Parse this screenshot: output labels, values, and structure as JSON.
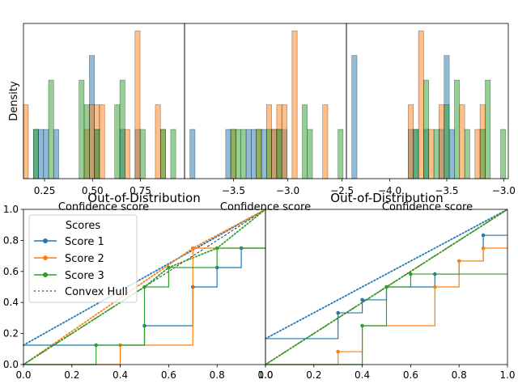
{
  "chart_data": [
    {
      "type": "bar",
      "panel": "hist-1",
      "ylabel": "Density",
      "xlabel": "Confidence score",
      "xlim": [
        0.14,
        0.98
      ],
      "xticks": [
        0.25,
        0.5,
        0.75
      ],
      "xtick_labels": [
        "0.25",
        "0.50",
        "0.75"
      ],
      "ylim": [
        0,
        6.3
      ],
      "bin_width": 0.0265,
      "series": [
        {
          "color": "#1f77b4",
          "bins": [
            [
              0.205,
              2
            ],
            [
              0.232,
              2
            ],
            [
              0.258,
              2
            ],
            [
              0.311,
              2
            ],
            [
              0.497,
              5
            ],
            [
              0.523,
              2
            ],
            [
              0.656,
              2
            ],
            [
              0.735,
              2
            ]
          ]
        },
        {
          "color": "#ff7f0e",
          "bins": [
            [
              0.152,
              3
            ],
            [
              0.47,
              2
            ],
            [
              0.497,
              3
            ],
            [
              0.523,
              3
            ],
            [
              0.55,
              3
            ],
            [
              0.682,
              2
            ],
            [
              0.735,
              6
            ],
            [
              0.841,
              3
            ],
            [
              0.868,
              2
            ]
          ]
        },
        {
          "color": "#2ca02c",
          "bins": [
            [
              0.205,
              2
            ],
            [
              0.284,
              4
            ],
            [
              0.443,
              4
            ],
            [
              0.47,
              3
            ],
            [
              0.523,
              2
            ],
            [
              0.629,
              3
            ],
            [
              0.656,
              4
            ],
            [
              0.762,
              2
            ],
            [
              0.868,
              2
            ],
            [
              0.921,
              2
            ]
          ]
        }
      ]
    },
    {
      "type": "bar",
      "panel": "hist-2",
      "xlabel": "Confidence score",
      "xlim": [
        -3.95,
        -2.46
      ],
      "xticks": [
        -3.5,
        -3.0,
        -2.5
      ],
      "xtick_labels": [
        "−3.5",
        "−3.0",
        "−2.5"
      ],
      "ylim": [
        0,
        6.3
      ],
      "bin_width": 0.047,
      "series": [
        {
          "color": "#1f77b4",
          "bins": [
            [
              -3.877,
              2
            ],
            [
              -3.548,
              2
            ],
            [
              -3.36,
              2
            ],
            [
              -3.313,
              2
            ],
            [
              -3.219,
              2
            ],
            [
              -3.125,
              2
            ],
            [
              -3.078,
              2
            ],
            [
              -3.031,
              2
            ]
          ]
        },
        {
          "color": "#ff7f0e",
          "bins": [
            [
              -3.501,
              2
            ],
            [
              -3.266,
              2
            ],
            [
              -3.172,
              3
            ],
            [
              -3.125,
              2
            ],
            [
              -3.078,
              3
            ],
            [
              -3.031,
              3
            ],
            [
              -2.937,
              6
            ],
            [
              -2.655,
              3
            ]
          ]
        },
        {
          "color": "#2ca02c",
          "bins": [
            [
              -3.501,
              2
            ],
            [
              -3.454,
              2
            ],
            [
              -3.407,
              2
            ],
            [
              -3.266,
              2
            ],
            [
              -3.172,
              2
            ],
            [
              -3.078,
              2
            ],
            [
              -2.843,
              3
            ],
            [
              -2.796,
              2
            ],
            [
              -2.514,
              2
            ]
          ]
        }
      ]
    },
    {
      "type": "bar",
      "panel": "hist-3",
      "xlabel": "Confidence score",
      "xlim": [
        -4.38,
        -2.96
      ],
      "xticks": [
        -4.0,
        -3.5,
        -3.0
      ],
      "xtick_labels": [
        "−4.0",
        "−3.5",
        "−3.0"
      ],
      "ylim": [
        0,
        6.3
      ],
      "bin_width": 0.045,
      "series": [
        {
          "color": "#1f77b4",
          "bins": [
            [
              -4.31,
              5
            ],
            [
              -3.815,
              2
            ],
            [
              -3.77,
              2
            ],
            [
              -3.68,
              2
            ],
            [
              -3.545,
              2
            ],
            [
              -3.5,
              5
            ],
            [
              -3.455,
              2
            ]
          ]
        },
        {
          "color": "#ff7f0e",
          "bins": [
            [
              -3.815,
              3
            ],
            [
              -3.725,
              6
            ],
            [
              -3.635,
              2
            ],
            [
              -3.545,
              3
            ],
            [
              -3.365,
              3
            ],
            [
              -3.23,
              2
            ],
            [
              -3.185,
              3
            ]
          ]
        },
        {
          "color": "#2ca02c",
          "bins": [
            [
              -3.77,
              2
            ],
            [
              -3.68,
              4
            ],
            [
              -3.59,
              2
            ],
            [
              -3.5,
              3
            ],
            [
              -3.41,
              4
            ],
            [
              -3.32,
              2
            ],
            [
              -3.185,
              2
            ],
            [
              -3.14,
              4
            ],
            [
              -3.005,
              2
            ]
          ]
        }
      ]
    },
    {
      "type": "line",
      "panel": "roc-1",
      "title": "Out-of-Distribution",
      "xlim": [
        0,
        1
      ],
      "ylim": [
        0,
        1
      ],
      "xtick_labels": [
        "0.0",
        "0.2",
        "0.4",
        "0.6",
        "0.8",
        "1.0"
      ],
      "ytick_labels": [
        "0.0",
        "0.2",
        "0.4",
        "0.6",
        "0.8",
        "1.0"
      ],
      "legend": {
        "placement": "top-left",
        "title": "Scores",
        "entries": [
          "Score 1",
          "Score 2",
          "Score 3",
          "Convex Hull"
        ]
      },
      "series": [
        {
          "name": "Score 1",
          "color": "#1f77b4",
          "points": [
            [
              0,
              0.125
            ],
            [
              0.5,
              0.125
            ],
            [
              0.5,
              0.25
            ],
            [
              0.7,
              0.25
            ],
            [
              0.7,
              0.5
            ],
            [
              0.8,
              0.5
            ],
            [
              0.8,
              0.625
            ],
            [
              0.9,
              0.625
            ],
            [
              0.9,
              0.75
            ],
            [
              1.0,
              0.75
            ]
          ],
          "markers": [
            [
              0.5,
              0.25
            ],
            [
              0.7,
              0.5
            ],
            [
              0.8,
              0.625
            ],
            [
              0.9,
              0.75
            ]
          ],
          "hull": [
            [
              0,
              0.125
            ],
            [
              1.0,
              1.0
            ]
          ]
        },
        {
          "name": "Score 2",
          "color": "#ff7f0e",
          "points": [
            [
              0,
              0
            ],
            [
              0.4,
              0
            ],
            [
              0.4,
              0.125
            ],
            [
              0.7,
              0.125
            ],
            [
              0.7,
              0.75
            ],
            [
              1.0,
              0.75
            ]
          ],
          "markers": [
            [
              0.4,
              0.125
            ],
            [
              0.7,
              0.75
            ]
          ],
          "hull": [
            [
              0,
              0
            ],
            [
              0.7,
              0.75
            ],
            [
              1.0,
              1.0
            ]
          ]
        },
        {
          "name": "Score 3",
          "color": "#2ca02c",
          "points": [
            [
              0,
              0
            ],
            [
              0.3,
              0
            ],
            [
              0.3,
              0.125
            ],
            [
              0.5,
              0.125
            ],
            [
              0.5,
              0.5
            ],
            [
              0.6,
              0.5
            ],
            [
              0.6,
              0.625
            ],
            [
              0.8,
              0.625
            ],
            [
              0.8,
              0.75
            ],
            [
              1.0,
              0.75
            ]
          ],
          "markers": [
            [
              0.3,
              0.125
            ],
            [
              0.5,
              0.5
            ],
            [
              0.6,
              0.625
            ],
            [
              0.8,
              0.75
            ]
          ],
          "hull": [
            [
              0,
              0
            ],
            [
              0.5,
              0.5
            ],
            [
              0.6,
              0.625
            ],
            [
              0.8,
              0.75
            ],
            [
              1.0,
              1.0
            ]
          ]
        }
      ]
    },
    {
      "type": "line",
      "panel": "roc-2",
      "title": "Out-of-Distribution",
      "xlim": [
        0,
        1
      ],
      "ylim": [
        0,
        1
      ],
      "xtick_labels": [
        "0.0",
        "0.2",
        "0.4",
        "0.6",
        "0.8",
        "1.0"
      ],
      "series": [
        {
          "name": "Score 1",
          "color": "#1f77b4",
          "points": [
            [
              0,
              0.167
            ],
            [
              0.3,
              0.167
            ],
            [
              0.3,
              0.333
            ],
            [
              0.4,
              0.333
            ],
            [
              0.4,
              0.417
            ],
            [
              0.5,
              0.417
            ],
            [
              0.5,
              0.5
            ],
            [
              0.7,
              0.5
            ],
            [
              0.7,
              0.583
            ],
            [
              0.8,
              0.583
            ],
            [
              0.8,
              0.667
            ],
            [
              0.9,
              0.667
            ],
            [
              0.9,
              0.833
            ],
            [
              1.0,
              0.833
            ]
          ],
          "markers": [
            [
              0.3,
              0.333
            ],
            [
              0.4,
              0.417
            ],
            [
              0.7,
              0.583
            ],
            [
              0.9,
              0.833
            ]
          ],
          "hull": [
            [
              0,
              0.167
            ],
            [
              1.0,
              1.0
            ]
          ]
        },
        {
          "name": "Score 2",
          "color": "#ff7f0e",
          "points": [
            [
              0,
              0
            ],
            [
              0.3,
              0
            ],
            [
              0.3,
              0.083
            ],
            [
              0.4,
              0.083
            ],
            [
              0.4,
              0.25
            ],
            [
              0.7,
              0.25
            ],
            [
              0.7,
              0.5
            ],
            [
              0.8,
              0.5
            ],
            [
              0.8,
              0.667
            ],
            [
              0.9,
              0.667
            ],
            [
              0.9,
              0.75
            ],
            [
              1.0,
              0.75
            ]
          ],
          "markers": [
            [
              0.3,
              0.083
            ],
            [
              0.7,
              0.5
            ],
            [
              0.8,
              0.667
            ],
            [
              0.9,
              0.75
            ]
          ],
          "hull": [
            [
              0,
              0
            ],
            [
              1.0,
              1.0
            ]
          ]
        },
        {
          "name": "Score 3",
          "color": "#2ca02c",
          "points": [
            [
              0,
              0
            ],
            [
              0.4,
              0
            ],
            [
              0.4,
              0.25
            ],
            [
              0.5,
              0.25
            ],
            [
              0.5,
              0.5
            ],
            [
              0.6,
              0.5
            ],
            [
              0.6,
              0.583
            ],
            [
              1.0,
              0.583
            ]
          ],
          "markers": [
            [
              0.4,
              0.25
            ],
            [
              0.5,
              0.5
            ],
            [
              0.6,
              0.583
            ]
          ],
          "hull": [
            [
              0,
              0
            ],
            [
              1.0,
              1.0
            ]
          ]
        }
      ]
    }
  ]
}
